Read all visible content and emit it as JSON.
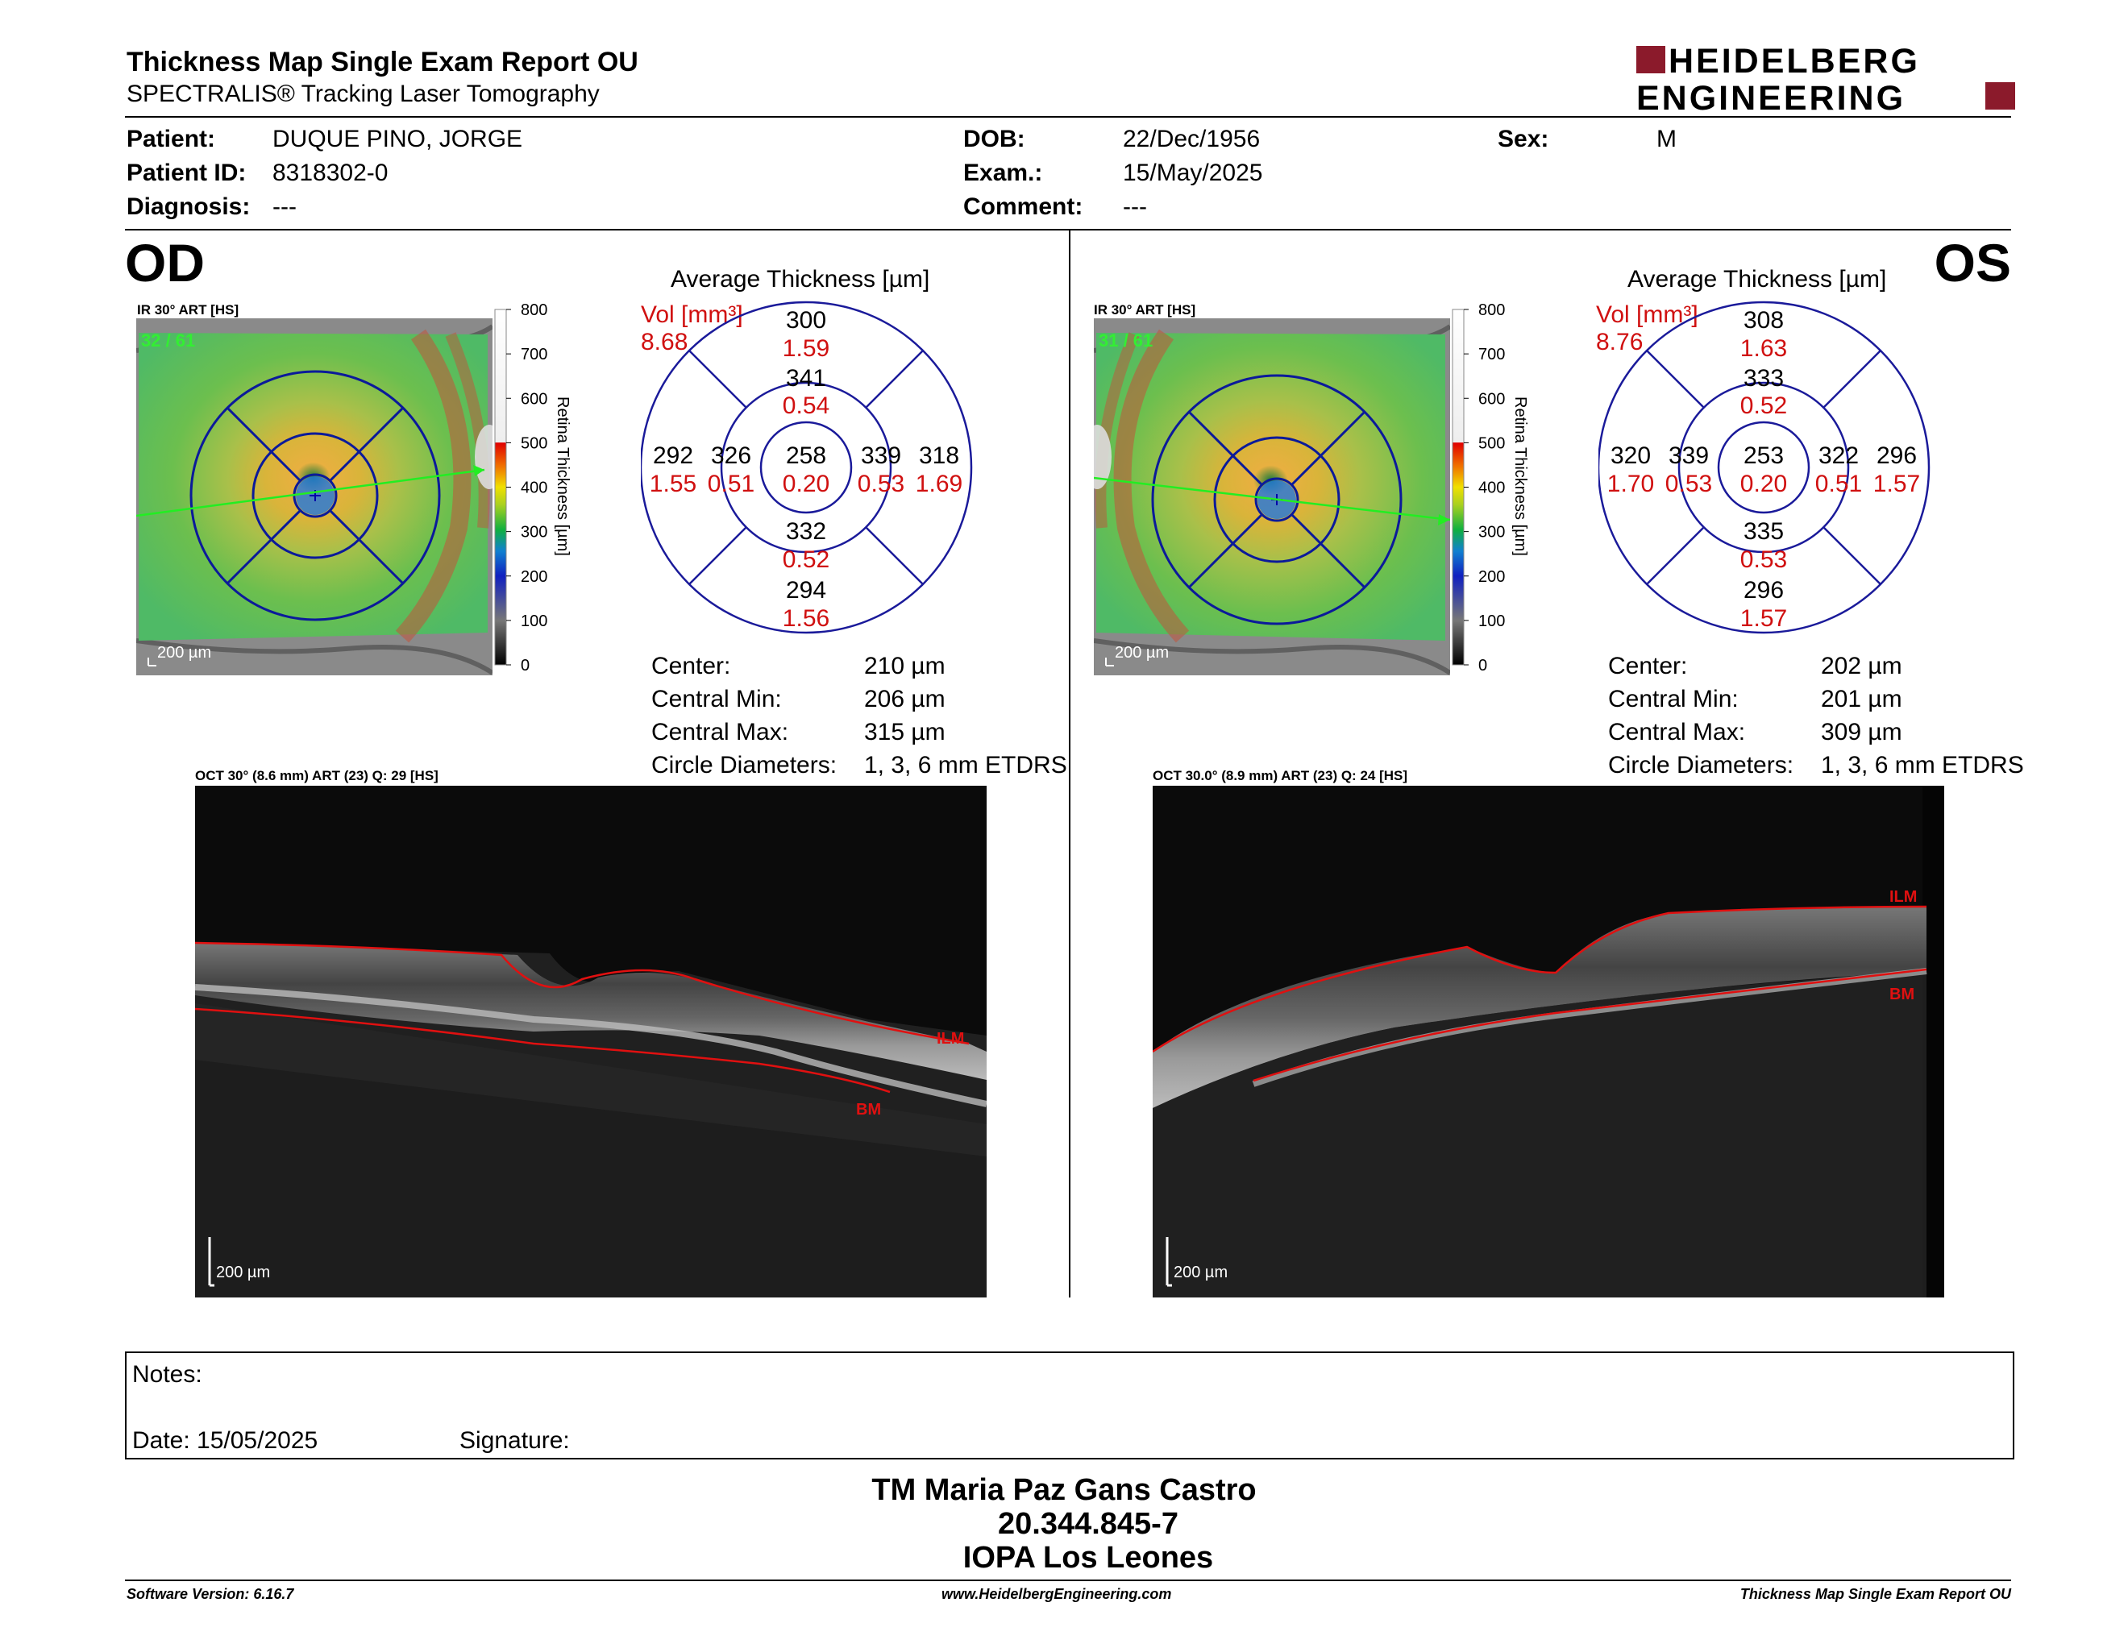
{
  "header": {
    "title": "Thickness Map Single Exam Report OU",
    "subtitle": "SPECTRALIS® Tracking Laser Tomography",
    "logo_line1": "HEIDELBERG",
    "logo_line2": "ENGINEERING",
    "brand_color": "#8b1a2b"
  },
  "patient": {
    "patient_label": "Patient:",
    "patient_value": "DUQUE PINO, JORGE",
    "id_label": "Patient ID:",
    "id_value": "8318302-0",
    "diagnosis_label": "Diagnosis:",
    "diagnosis_value": "---",
    "dob_label": "DOB:",
    "dob_value": "22/Dec/1956",
    "exam_label": "Exam.:",
    "exam_value": "15/May/2025",
    "comment_label": "Comment:",
    "comment_value": "---",
    "sex_label": "Sex:",
    "sex_value": "M"
  },
  "od": {
    "eye_label": "OD",
    "ir_caption": "IR 30° ART [HS]",
    "ir_counter": "32 / 61",
    "scale_label": "200 µm",
    "colorbar_ticks": [
      "800",
      "700",
      "600",
      "500",
      "400",
      "300",
      "200",
      "100",
      "0"
    ],
    "colorbar_title": "Retina Thickness [µm]",
    "avg_title": "Average Thickness [µm]",
    "vol_label": "Vol [mm³]",
    "vol_value": "8.68",
    "etdrs": {
      "center": {
        "thk": "258",
        "vol": "0.20"
      },
      "inner_sup": {
        "thk": "341",
        "vol": "0.54"
      },
      "inner_inf": {
        "thk": "332",
        "vol": "0.52"
      },
      "inner_left": {
        "thk": "326",
        "vol": "0.51"
      },
      "inner_right": {
        "thk": "339",
        "vol": "0.53"
      },
      "outer_sup": {
        "thk": "300",
        "vol": "1.59"
      },
      "outer_inf": {
        "thk": "294",
        "vol": "1.56"
      },
      "outer_left": {
        "thk": "292",
        "vol": "1.55"
      },
      "outer_right": {
        "thk": "318",
        "vol": "1.69"
      }
    },
    "stats": [
      {
        "label": "Center:",
        "value": "210 µm"
      },
      {
        "label": "Central Min:",
        "value": "206 µm"
      },
      {
        "label": "Central Max:",
        "value": "315 µm"
      },
      {
        "label": "Circle Diameters:",
        "value": "1, 3, 6 mm ETDRS"
      }
    ],
    "oct_caption": "OCT 30° (8.6 mm) ART (23) Q: 29 [HS]",
    "ilm_label": "ILM",
    "bm_label": "BM"
  },
  "os": {
    "eye_label": "OS",
    "ir_caption": "IR 30° ART [HS]",
    "ir_counter": "31 / 61",
    "scale_label": "200 µm",
    "colorbar_ticks": [
      "800",
      "700",
      "600",
      "500",
      "400",
      "300",
      "200",
      "100",
      "0"
    ],
    "colorbar_title": "Retina Thickness [µm]",
    "avg_title": "Average Thickness [µm]",
    "vol_label": "Vol [mm³]",
    "vol_value": "8.76",
    "etdrs": {
      "center": {
        "thk": "253",
        "vol": "0.20"
      },
      "inner_sup": {
        "thk": "333",
        "vol": "0.52"
      },
      "inner_inf": {
        "thk": "335",
        "vol": "0.53"
      },
      "inner_left": {
        "thk": "339",
        "vol": "0.53"
      },
      "inner_right": {
        "thk": "322",
        "vol": "0.51"
      },
      "outer_sup": {
        "thk": "308",
        "vol": "1.63"
      },
      "outer_inf": {
        "thk": "296",
        "vol": "1.57"
      },
      "outer_left": {
        "thk": "320",
        "vol": "1.70"
      },
      "outer_right": {
        "thk": "296",
        "vol": "1.57"
      }
    },
    "stats": [
      {
        "label": "Center:",
        "value": "202 µm"
      },
      {
        "label": "Central Min:",
        "value": "201 µm"
      },
      {
        "label": "Central Max:",
        "value": "309 µm"
      },
      {
        "label": "Circle Diameters:",
        "value": "1, 3, 6 mm ETDRS"
      }
    ],
    "oct_caption": "OCT 30.0° (8.9 mm) ART (23) Q: 24 [HS]",
    "ilm_label": "ILM",
    "bm_label": "BM"
  },
  "notes": {
    "notes_label": "Notes:",
    "date_label": "Date: 15/05/2025",
    "signature_label": "Signature:"
  },
  "signature_block": {
    "line1": "TM Maria Paz Gans Castro",
    "line2": "20.344.845-7",
    "line3": "IOPA Los Leones"
  },
  "footer": {
    "software": "Software Version: 6.16.7",
    "website": "www.HeidelbergEngineering.com",
    "report_name": "Thickness Map Single Exam Report OU"
  }
}
